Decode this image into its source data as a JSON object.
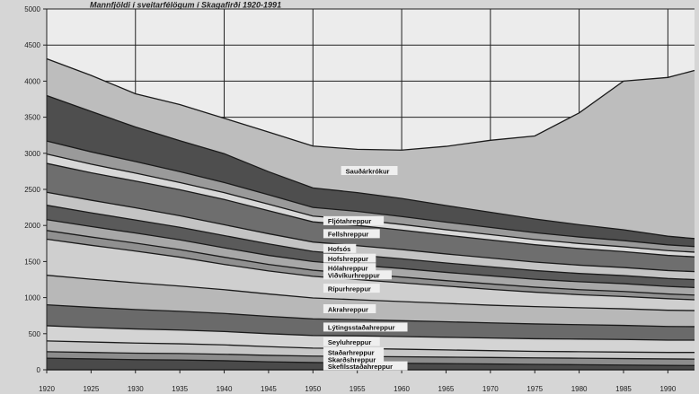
{
  "chart_data": {
    "type": "area",
    "title": "Mannfjöldi í sveitarfélögum í Skagafirði 1920-1991",
    "xlabel": "",
    "ylabel": "",
    "xlim": [
      1920,
      1993
    ],
    "ylim": [
      0,
      5000
    ],
    "grid": true,
    "x_ticks": [
      1920,
      1925,
      1930,
      1935,
      1940,
      1945,
      1950,
      1955,
      1960,
      1965,
      1970,
      1975,
      1980,
      1985,
      1990
    ],
    "y_ticks": [
      0,
      500,
      1000,
      1500,
      2000,
      2500,
      3000,
      3500,
      4000,
      4500,
      5000
    ],
    "x": [
      1920,
      1925,
      1930,
      1935,
      1940,
      1945,
      1950,
      1955,
      1960,
      1965,
      1970,
      1975,
      1980,
      1985,
      1990,
      1993
    ],
    "series": [
      {
        "name": "Skefilsstaðahreppur",
        "color": "#4a4a4a",
        "values": [
          160,
          150,
          140,
          135,
          125,
          110,
          100,
          95,
          90,
          85,
          80,
          75,
          70,
          65,
          60,
          58
        ]
      },
      {
        "name": "Skarðshreppur",
        "color": "#8c8c8c",
        "values": [
          90,
          90,
          90,
          90,
          90,
          90,
          90,
          90,
          90,
          90,
          90,
          90,
          90,
          90,
          90,
          90
        ]
      },
      {
        "name": "Staðarhreppur",
        "color": "#c7c7c7",
        "values": [
          150,
          145,
          140,
          135,
          130,
          120,
          110,
          110,
          105,
          100,
          95,
          90,
          90,
          90,
          90,
          92
        ]
      },
      {
        "name": "Seyluhreppur",
        "color": "#d4d4d4",
        "values": [
          210,
          200,
          195,
          190,
          185,
          180,
          175,
          175,
          175,
          175,
          175,
          175,
          175,
          175,
          170,
          170
        ]
      },
      {
        "name": "Lýtingsstaðahreppur",
        "color": "#6a6a6a",
        "values": [
          290,
          280,
          270,
          260,
          250,
          240,
          230,
          225,
          220,
          215,
          210,
          205,
          200,
          195,
          190,
          188
        ]
      },
      {
        "name": "Akrahreppur",
        "color": "#b8b8b8",
        "values": [
          410,
          390,
          370,
          350,
          330,
          310,
          290,
          275,
          265,
          255,
          245,
          240,
          235,
          230,
          225,
          222
        ]
      },
      {
        "name": "Rípurhreppur",
        "color": "#cfcfcf",
        "values": [
          500,
          470,
          440,
          400,
          350,
          320,
          300,
          280,
          260,
          240,
          220,
          200,
          180,
          170,
          160,
          150
        ]
      },
      {
        "name": "Viðvíkurhreppur",
        "color": "#909090",
        "values": [
          120,
          115,
          110,
          105,
          100,
          90,
          85,
          80,
          80,
          75,
          75,
          70,
          70,
          70,
          65,
          65
        ]
      },
      {
        "name": "Hólahreppur",
        "color": "#a8a8a8",
        "values": [
          150,
          145,
          140,
          135,
          130,
          125,
          120,
          120,
          118,
          115,
          112,
          110,
          110,
          108,
          105,
          105
        ]
      },
      {
        "name": "Hofshreppur",
        "color": "#5a5a5a",
        "values": [
          200,
          190,
          180,
          175,
          170,
          160,
          140,
          140,
          135,
          130,
          125,
          120,
          115,
          112,
          110,
          110
        ]
      },
      {
        "name": "Hofsós",
        "color": "#c4c4c4",
        "values": [
          180,
          175,
          170,
          160,
          150,
          140,
          130,
          130,
          128,
          125,
          122,
          118,
          115,
          112,
          110,
          110
        ]
      },
      {
        "name": "Fellshreppur",
        "color": "#6e6e6e",
        "values": [
          400,
          380,
          370,
          360,
          350,
          320,
          280,
          280,
          270,
          260,
          250,
          240,
          230,
          220,
          210,
          205
        ]
      },
      {
        "name": "Fljótahreppur",
        "color": "#d8d8d8",
        "values": [
          130,
          120,
          110,
          100,
          95,
          90,
          80,
          80,
          78,
          76,
          74,
          72,
          70,
          68,
          66,
          65
        ]
      },
      {
        "name": "",
        "color": "#9a9a9a",
        "values": [
          180,
          170,
          160,
          150,
          140,
          130,
          120,
          115,
          110,
          105,
          100,
          95,
          90,
          85,
          80,
          78
        ]
      },
      {
        "name": "",
        "color": "#4e4e4e",
        "values": [
          630,
          560,
          480,
          430,
          400,
          320,
          270,
          260,
          250,
          230,
          210,
          190,
          170,
          150,
          120,
          110
        ]
      },
      {
        "name": "Sauðárkrókur",
        "color": "#bdbdbd",
        "values": [
          510,
          500,
          460,
          500,
          490,
          550,
          580,
          600,
          670,
          820,
          997,
          1150,
          1550,
          2060,
          2200,
          2330
        ]
      }
    ]
  }
}
